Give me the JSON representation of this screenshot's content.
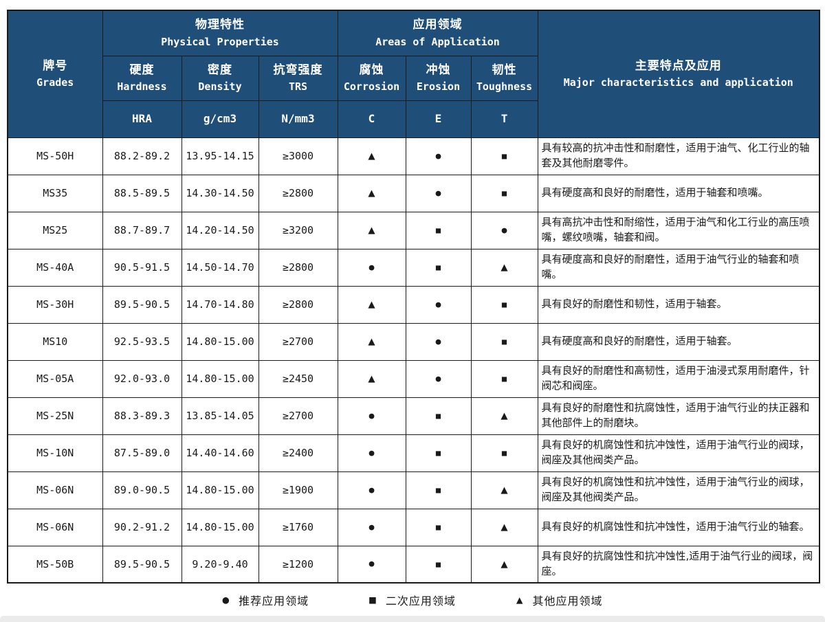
{
  "table": {
    "header": {
      "grades_zh": "牌号",
      "grades_en": "Grades",
      "physical_zh": "物理特性",
      "physical_en": "Physical Properties",
      "application_zh": "应用领域",
      "application_en": "Areas of Application",
      "major_zh": "主要特点及应用",
      "major_en": "Major characteristics and application",
      "sub": [
        {
          "zh": "硬度",
          "en": "Hardness",
          "unit": "HRA"
        },
        {
          "zh": "密度",
          "en": "Density",
          "unit": "g/cm3"
        },
        {
          "zh": "抗弯强度",
          "en": "TRS",
          "unit": "N/mm3"
        },
        {
          "zh": "腐蚀",
          "en": "Corrosion",
          "unit": "C"
        },
        {
          "zh": "冲蚀",
          "en": "Erosion",
          "unit": "E"
        },
        {
          "zh": "韧性",
          "en": "Toughness",
          "unit": "T"
        }
      ]
    },
    "rows": [
      {
        "grade": "MS-50H",
        "hardness": "88.2-89.2",
        "density": "13.95-14.15",
        "trs": "≥3000",
        "corrosion": "▲",
        "erosion": "●",
        "toughness": "■",
        "desc": "具有较高的抗冲击性和耐磨性，适用于油气、化工行业的轴套及其他耐磨零件。"
      },
      {
        "grade": "MS35",
        "hardness": "88.5-89.5",
        "density": "14.30-14.50",
        "trs": "≥2800",
        "corrosion": "▲",
        "erosion": "●",
        "toughness": "■",
        "desc": "具有硬度高和良好的耐磨性，适用于轴套和喷嘴。"
      },
      {
        "grade": "MS25",
        "hardness": "88.7-89.7",
        "density": "14.20-14.50",
        "trs": "≥3200",
        "corrosion": "▲",
        "erosion": "■",
        "toughness": "●",
        "desc": "具有高抗冲击性和耐缩性，适用于油气和化工行业的高压喷嘴，螺纹喷嘴，轴套和阀。"
      },
      {
        "grade": "MS-40A",
        "hardness": "90.5-91.5",
        "density": "14.50-14.70",
        "trs": "≥2800",
        "corrosion": "●",
        "erosion": "■",
        "toughness": "▲",
        "desc": "具有硬度高和良好的耐磨性，适用于油气行业的轴套和喷嘴。"
      },
      {
        "grade": "MS-30H",
        "hardness": "89.5-90.5",
        "density": "14.70-14.80",
        "trs": "≥2800",
        "corrosion": "▲",
        "erosion": "●",
        "toughness": "■",
        "desc": "具有良好的耐磨性和韧性，适用于轴套。"
      },
      {
        "grade": "MS10",
        "hardness": "92.5-93.5",
        "density": "14.80-15.00",
        "trs": "≥2700",
        "corrosion": "▲",
        "erosion": "●",
        "toughness": "■",
        "desc": "具有硬度高和良好的耐磨性，适用于轴套。"
      },
      {
        "grade": "MS-05A",
        "hardness": "92.0-93.0",
        "density": "14.80-15.00",
        "trs": "≥2450",
        "corrosion": "▲",
        "erosion": "●",
        "toughness": "■",
        "desc": "具有良好的耐磨性和高韧性，适用于油浸式泵用耐磨件，针阀芯和阀座。"
      },
      {
        "grade": "MS-25N",
        "hardness": "88.3-89.3",
        "density": "13.85-14.05",
        "trs": "≥2700",
        "corrosion": "●",
        "erosion": "■",
        "toughness": "▲",
        "desc": "具有良好的耐磨性和抗腐蚀性，适用于油气行业的扶正器和其他部件上的耐磨块。"
      },
      {
        "grade": "MS-10N",
        "hardness": "87.5-89.0",
        "density": "14.40-14.60",
        "trs": "≥2400",
        "corrosion": "●",
        "erosion": "■",
        "toughness": "■",
        "desc": "具有良好的机腐蚀性和抗冲蚀性，适用于油气行业的阀球，阀座及其他阀类产品。"
      },
      {
        "grade": "MS-06N",
        "hardness": "89.0-90.5",
        "density": "14.80-15.00",
        "trs": "≥1900",
        "corrosion": "●",
        "erosion": "■",
        "toughness": "▲",
        "desc": "具有良好的机腐蚀性和抗冲蚀性，适用于油气行业的阀球，阀座及其他阀类产品。"
      },
      {
        "grade": "MS-06N",
        "hardness": "90.2-91.2",
        "density": "14.80-15.00",
        "trs": "≥1760",
        "corrosion": "●",
        "erosion": "■",
        "toughness": "▲",
        "desc": "具有良好的机腐蚀性和抗冲蚀性，适用于油气行业的轴套。"
      },
      {
        "grade": "MS-50B",
        "hardness": "89.5-90.5",
        "density": "9.20-9.40",
        "trs": "≥1200",
        "corrosion": "●",
        "erosion": "■",
        "toughness": "▲",
        "desc": "具有良好的抗腐蚀性和抗冲蚀性,适用于油气行业的阀球，阀座。"
      }
    ]
  },
  "legend": [
    {
      "symbol": "●",
      "label": "推荐应用领域"
    },
    {
      "symbol": "■",
      "label": "二次应用领域"
    },
    {
      "symbol": "▲",
      "label": "其他应用领域"
    }
  ],
  "colors": {
    "header_bg": "#1F4E79",
    "border": "#1a1a1a"
  }
}
